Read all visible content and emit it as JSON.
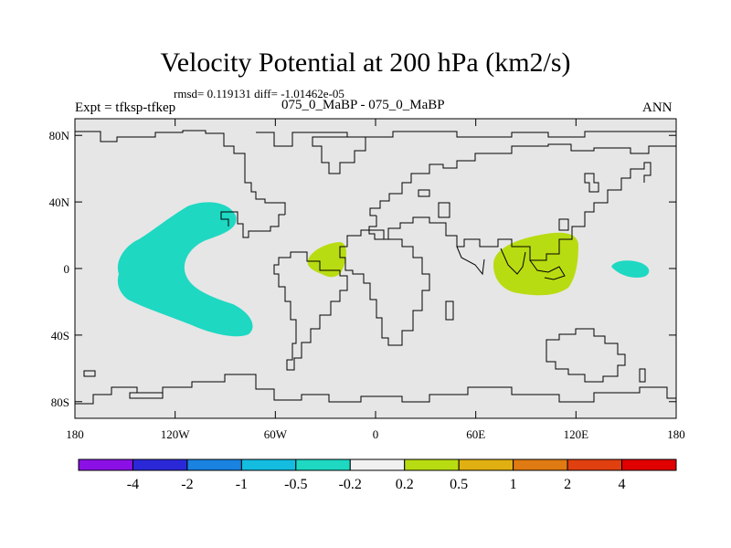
{
  "title": "Velocity Potential at 200 hPa (km2/s)",
  "stats": "rmsd= 0.119131 diff= -1.01462e-05",
  "expt": "Expt = tfksp-tfkep",
  "cases": "075_0_MaBP - 075_0_MaBP",
  "season": "ANN",
  "map": {
    "lat_ticks": [
      {
        "label": "80N",
        "lat": 80
      },
      {
        "label": "40N",
        "lat": 40
      },
      {
        "label": "0",
        "lat": 0
      },
      {
        "label": "40S",
        "lat": -40
      },
      {
        "label": "80S",
        "lat": -80
      }
    ],
    "lon_ticks": [
      {
        "label": "180",
        "lon": -180
      },
      {
        "label": "120W",
        "lon": -120
      },
      {
        "label": "60W",
        "lon": -60
      },
      {
        "label": "0",
        "lon": 0
      },
      {
        "label": "60E",
        "lon": 60
      },
      {
        "label": "120E",
        "lon": 120
      },
      {
        "label": "180",
        "lon": 180
      }
    ],
    "lat_range": [
      -90,
      90
    ],
    "lon_range": [
      -180,
      180
    ],
    "background_color": "#e6e6e6",
    "regions": [
      {
        "name": "negative-anomaly-east-pacific",
        "range": "-0.5 to -0.2",
        "color": "#1ed8c2"
      },
      {
        "name": "positive-anomaly-atlantic",
        "range": "0.2 to 0.5",
        "color": "#b8dc12"
      },
      {
        "name": "positive-anomaly-indian-ocean",
        "range": "0.2 to 0.5",
        "color": "#b8dc12"
      },
      {
        "name": "negative-anomaly-west-pacific",
        "range": "-0.5 to -0.2",
        "color": "#1ed8c2"
      }
    ]
  },
  "colorbar": {
    "colors": [
      "#8b10e6",
      "#2b28d8",
      "#1a82e0",
      "#14bce0",
      "#1ed8c2",
      "#f0f0f0",
      "#b8dc12",
      "#e0b012",
      "#e07a12",
      "#e04010",
      "#e00000"
    ],
    "labels": [
      "-4",
      "-2",
      "-1",
      "-0.5",
      "-0.2",
      "0.2",
      "0.5",
      "1",
      "2",
      "4"
    ]
  }
}
